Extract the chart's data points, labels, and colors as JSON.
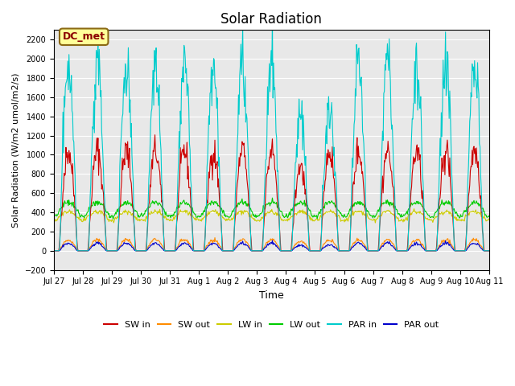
{
  "title": "Solar Radiation",
  "ylabel": "Solar Radiation (W/m2 umol/m2/s)",
  "xlabel": "Time",
  "ylim": [
    -200,
    2300
  ],
  "yticks": [
    -200,
    0,
    200,
    400,
    600,
    800,
    1000,
    1200,
    1400,
    1600,
    1800,
    2000,
    2200
  ],
  "num_days": 15,
  "start_day_label": "Jul 27",
  "day_labels": [
    "Jul 27",
    "Jul 28",
    "Jul 29",
    "Jul 30",
    "Jul 31",
    "Aug 1",
    "Aug 2",
    "Aug 3",
    "Aug 4",
    "Aug 5",
    "Aug 6",
    "Aug 7",
    "Aug 8",
    "Aug 9",
    "Aug 10",
    "Aug 11"
  ],
  "annotation_text": "DC_met",
  "annotation_color": "#8B0000",
  "annotation_bg": "#FFFF99",
  "series": {
    "SW_in": {
      "color": "#CC0000",
      "peak": 1130,
      "label": "SW in"
    },
    "SW_out": {
      "color": "#FF8C00",
      "peak": 130,
      "label": "SW out"
    },
    "LW_in": {
      "color": "#CCCC00",
      "peak": 420,
      "label": "LW in"
    },
    "LW_out": {
      "color": "#00CC00",
      "peak": 520,
      "label": "LW out"
    },
    "PAR_in": {
      "color": "#00CCCC",
      "peak": 2100,
      "label": "PAR in"
    },
    "PAR_out": {
      "color": "#0000CC",
      "peak": 90,
      "label": "PAR out"
    }
  },
  "background_color": "#E8E8E8",
  "grid_color": "#FFFFFF",
  "fig_bg": "#FFFFFF"
}
